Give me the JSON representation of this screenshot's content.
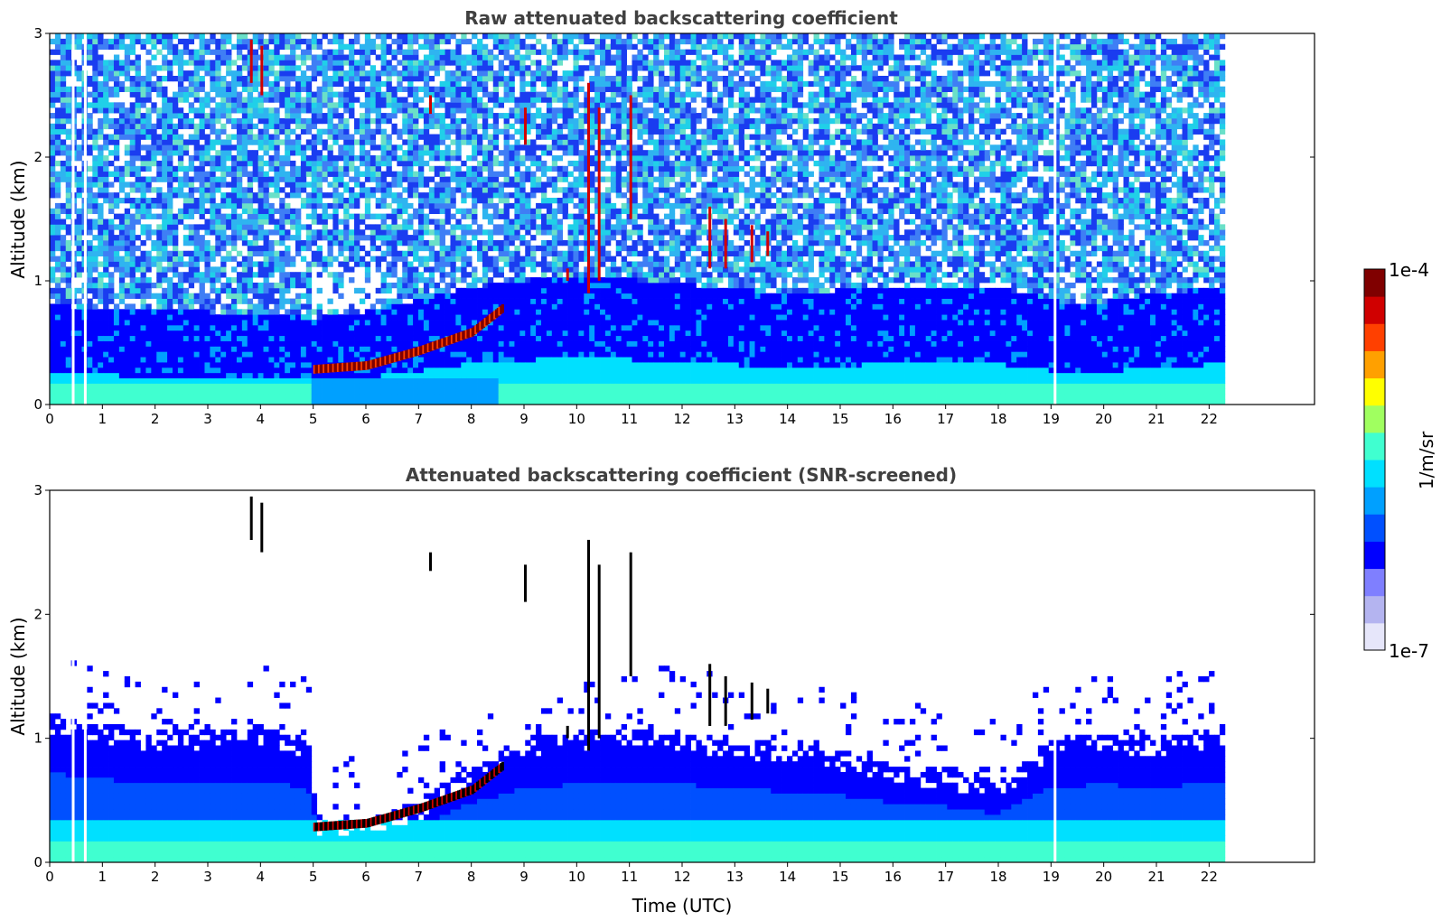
{
  "colors": {
    "colormap": [
      "#e6e6fa",
      "#b4b4f0",
      "#7f7fff",
      "#0000ff",
      "#0050ff",
      "#00a0ff",
      "#00e0ff",
      "#40ffd0",
      "#a0ff60",
      "#ffff00",
      "#ffa000",
      "#ff4000",
      "#d00000",
      "#800000"
    ],
    "noise_raw": [
      "#ffffff",
      "#1a3cf0",
      "#3f7ef5",
      "#2fb4f0",
      "#20d0e8",
      "#6ae0c8"
    ],
    "cloud_core": "#000000"
  },
  "chart_data": [
    {
      "type": "heatmap",
      "title": "Raw attenuated backscattering coefficient",
      "xlabel": "",
      "ylabel": "Altitude (km)",
      "xlim": [
        0,
        24
      ],
      "ylim": [
        0,
        3
      ],
      "xticks": [
        "0",
        "1",
        "2",
        "3",
        "4",
        "5",
        "6",
        "7",
        "8",
        "9",
        "10",
        "11",
        "12",
        "13",
        "14",
        "15",
        "16",
        "17",
        "18",
        "19",
        "20",
        "21",
        "22"
      ],
      "yticks": [
        "0",
        "1",
        "2",
        "3"
      ],
      "data_end_time": 22.3,
      "features": {
        "boundary_layer_top_km": [
          [
            0,
            0.45
          ],
          [
            3,
            0.4
          ],
          [
            5,
            0.35
          ],
          [
            6,
            0.4
          ],
          [
            8,
            0.6
          ],
          [
            10,
            0.7
          ],
          [
            14,
            0.55
          ],
          [
            16,
            0.6
          ],
          [
            18,
            0.6
          ],
          [
            19.5,
            0.45
          ],
          [
            21,
            0.55
          ],
          [
            22.3,
            0.6
          ]
        ],
        "cloud_layer": [
          [
            5.0,
            0.25
          ],
          [
            6.0,
            0.28
          ],
          [
            7.0,
            0.4
          ],
          [
            8.0,
            0.55
          ],
          [
            8.6,
            0.75
          ]
        ],
        "high_cloud_altitude_km": [
          2.2,
          2.6,
          1.1,
          1.3
        ]
      }
    },
    {
      "type": "heatmap",
      "title": "Attenuated backscattering coefficient (SNR-screened)",
      "xlabel": "Time (UTC)",
      "ylabel": "Altitude (km)",
      "xlim": [
        0,
        24
      ],
      "ylim": [
        0,
        3
      ],
      "xticks": [
        "0",
        "1",
        "2",
        "3",
        "4",
        "5",
        "6",
        "7",
        "8",
        "9",
        "10",
        "11",
        "12",
        "13",
        "14",
        "15",
        "16",
        "17",
        "18",
        "19",
        "20",
        "21",
        "22"
      ],
      "yticks": [
        "0",
        "1",
        "2",
        "3"
      ],
      "data_end_time": 22.3,
      "features": {
        "screened_top_km": [
          [
            0,
            1.2
          ],
          [
            2,
            1.05
          ],
          [
            4,
            1.1
          ],
          [
            4.9,
            1.0
          ],
          [
            5.1,
            0.35
          ],
          [
            6,
            0.35
          ],
          [
            7,
            0.5
          ],
          [
            8,
            0.8
          ],
          [
            9,
            1.0
          ],
          [
            11,
            1.1
          ],
          [
            13,
            1.0
          ],
          [
            14,
            0.95
          ],
          [
            15,
            0.9
          ],
          [
            16,
            0.8
          ],
          [
            17,
            0.75
          ],
          [
            18,
            0.65
          ],
          [
            19,
            1.0
          ],
          [
            20,
            1.05
          ],
          [
            21,
            1.0
          ],
          [
            22.3,
            1.1
          ]
        ]
      }
    }
  ],
  "colorbar": {
    "max_label": "1e-4",
    "min_label": "1e-7",
    "unit_label": "1/m/sr",
    "scale": "log",
    "range": [
      1e-07,
      0.0001
    ]
  }
}
